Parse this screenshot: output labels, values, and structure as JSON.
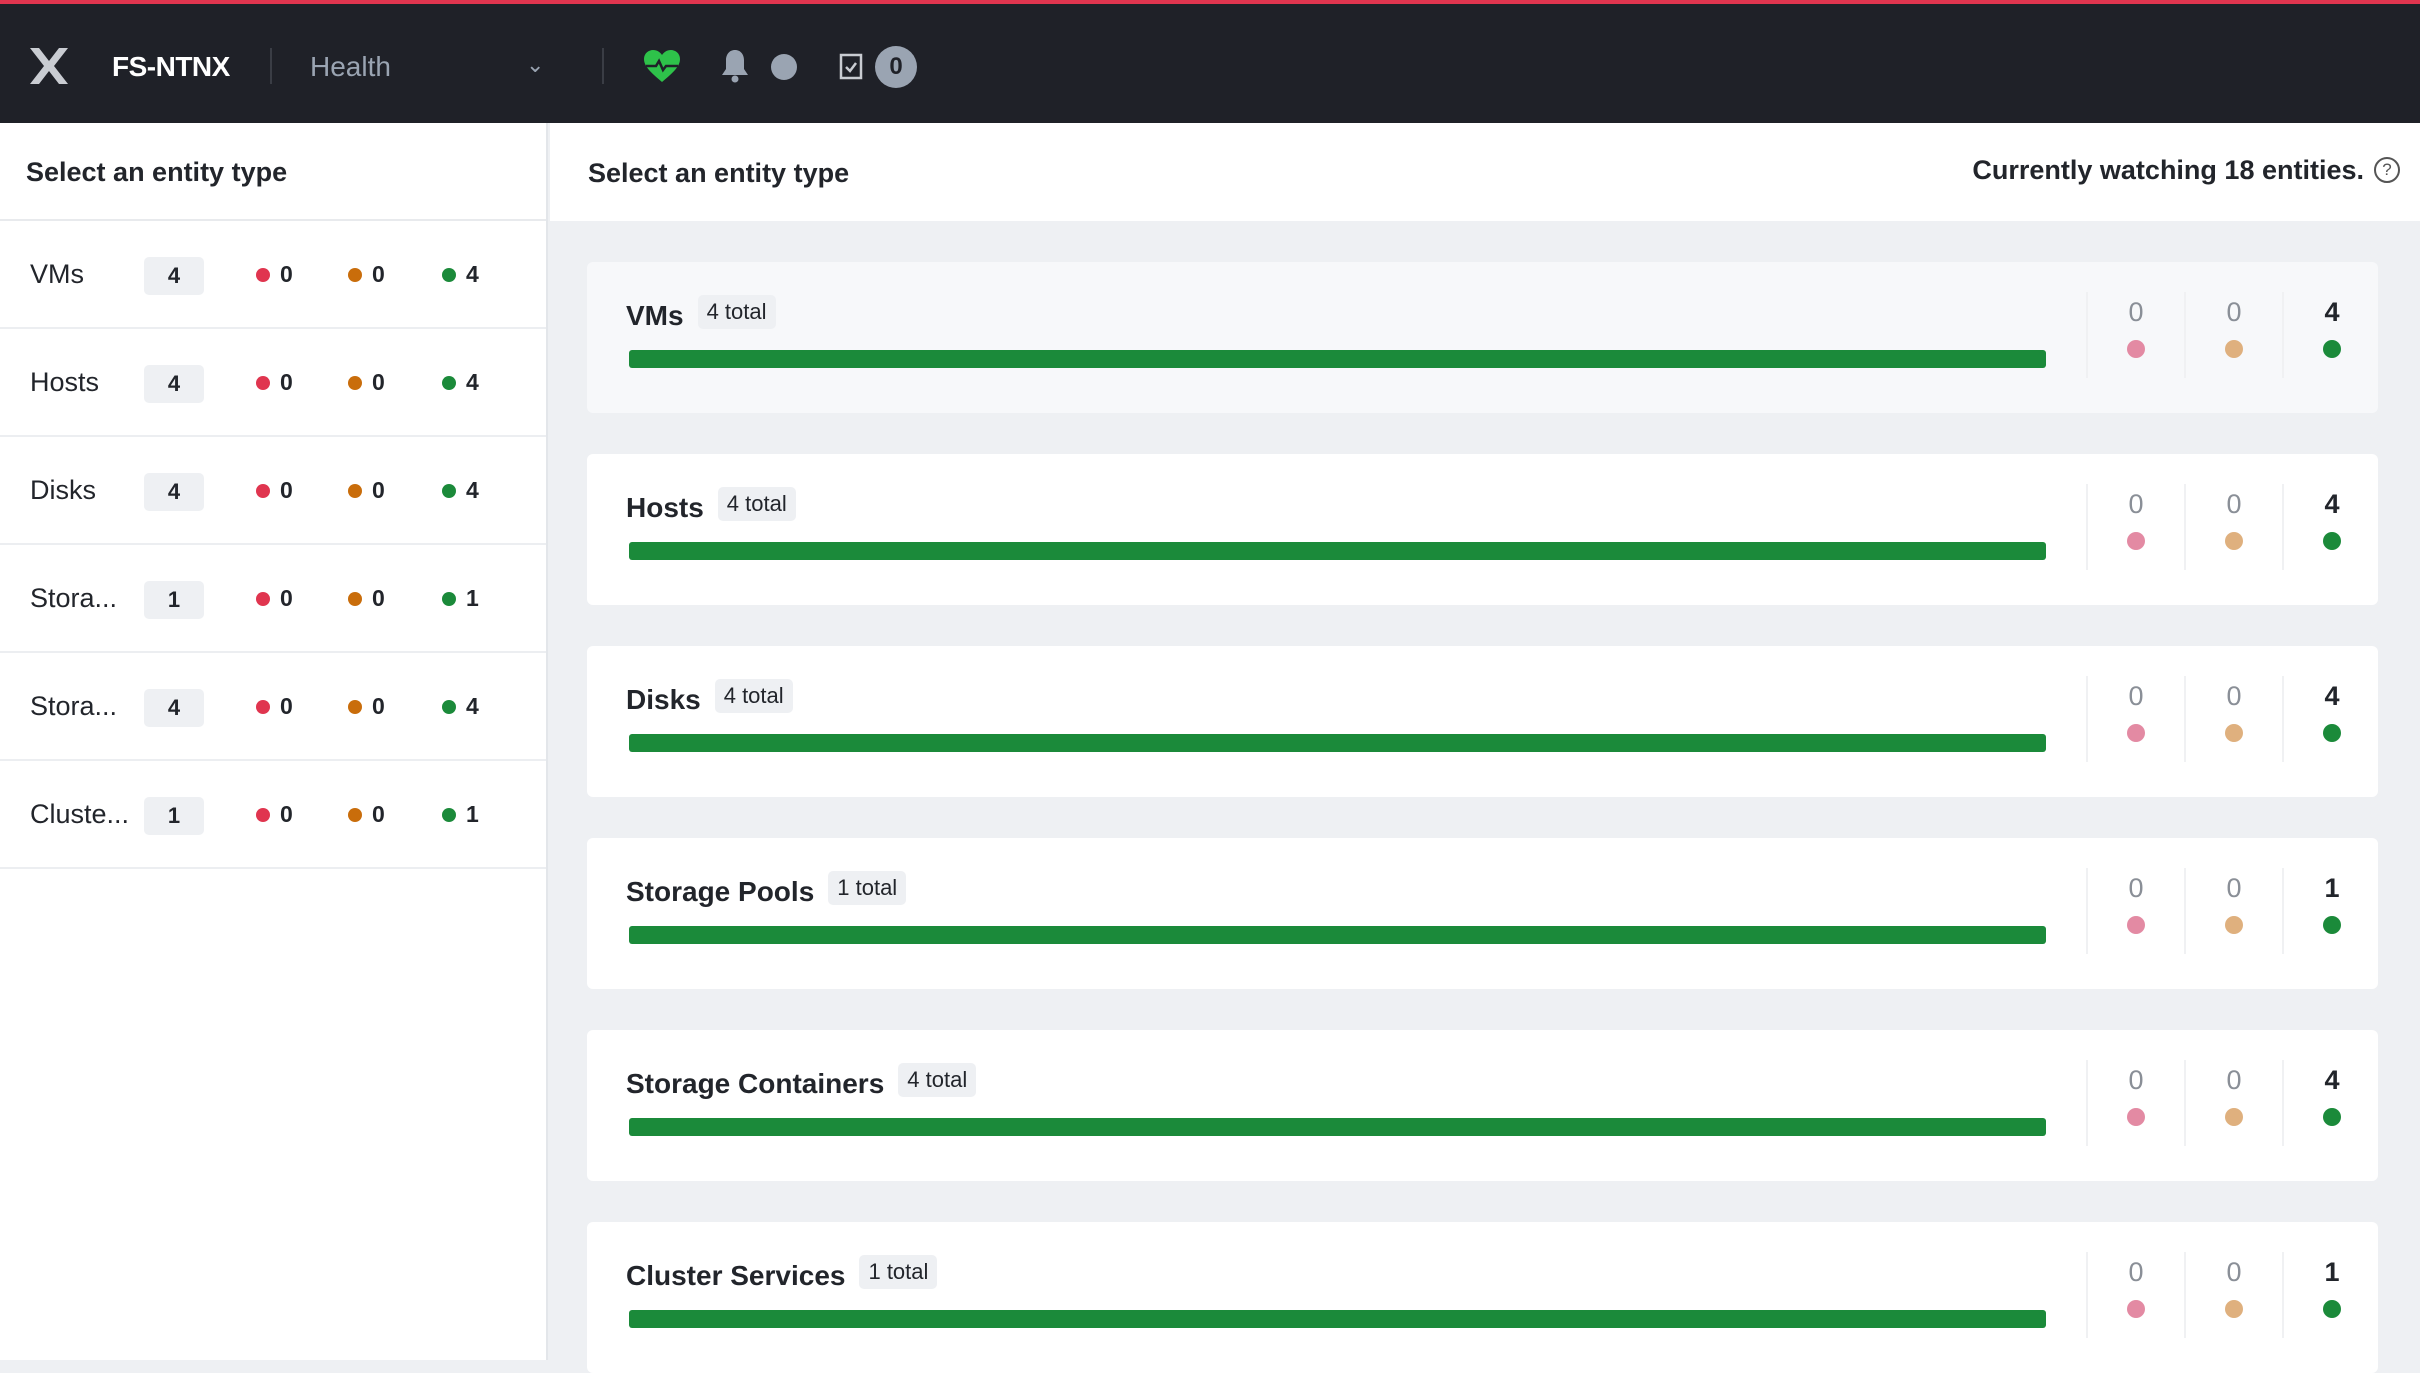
{
  "header": {
    "cluster": "FS-NTNX",
    "app": "Health",
    "task_count": "0",
    "icons": [
      "nutanix-logo",
      "chevron-down-icon",
      "heart-pulse-icon",
      "bell-icon",
      "status-dot-icon",
      "clipboard-check-icon"
    ]
  },
  "colors": {
    "critical": "#e0354f",
    "warning": "#c96d0b",
    "good": "#1b8a3a",
    "critical_light": "#e38aa3",
    "warning_light": "#dfb07e"
  },
  "left": {
    "title": "Select an entity type",
    "rows": [
      {
        "name": "VMs",
        "count": "4",
        "critical": "0",
        "warning": "0",
        "good": "4"
      },
      {
        "name": "Hosts",
        "count": "4",
        "critical": "0",
        "warning": "0",
        "good": "4"
      },
      {
        "name": "Disks",
        "count": "4",
        "critical": "0",
        "warning": "0",
        "good": "4"
      },
      {
        "name": "Stora...",
        "count": "1",
        "critical": "0",
        "warning": "0",
        "good": "1"
      },
      {
        "name": "Stora...",
        "count": "4",
        "critical": "0",
        "warning": "0",
        "good": "4"
      },
      {
        "name": "Cluste...",
        "count": "1",
        "critical": "0",
        "warning": "0",
        "good": "1"
      }
    ]
  },
  "main": {
    "title": "Select an entity type",
    "watching_prefix": "Currently watching ",
    "watching_count": "18",
    "watching_suffix": " entities.",
    "cards": [
      {
        "name": "VMs",
        "total": "4 total",
        "critical": "0",
        "warning": "0",
        "good": "4",
        "good_pct": 100
      },
      {
        "name": "Hosts",
        "total": "4 total",
        "critical": "0",
        "warning": "0",
        "good": "4",
        "good_pct": 100
      },
      {
        "name": "Disks",
        "total": "4 total",
        "critical": "0",
        "warning": "0",
        "good": "4",
        "good_pct": 100
      },
      {
        "name": "Storage Pools",
        "total": "1 total",
        "critical": "0",
        "warning": "0",
        "good": "1",
        "good_pct": 100
      },
      {
        "name": "Storage Containers",
        "total": "4 total",
        "critical": "0",
        "warning": "0",
        "good": "4",
        "good_pct": 100
      },
      {
        "name": "Cluster Services",
        "total": "1 total",
        "critical": "0",
        "warning": "0",
        "good": "1",
        "good_pct": 100
      }
    ]
  }
}
